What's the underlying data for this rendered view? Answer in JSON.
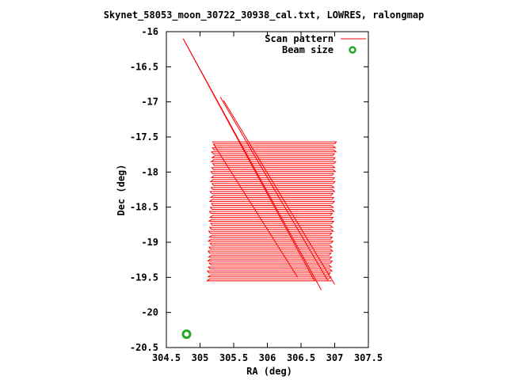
{
  "chart_data": {
    "type": "line",
    "title": "Skynet_58053_moon_30722_30938_cal.txt, LOWRES, ralongmap",
    "xlabel": "RA (deg)",
    "ylabel": "Dec (deg)",
    "xlim": [
      304.5,
      307.5
    ],
    "ylim": [
      -20.5,
      -16
    ],
    "xticks": [
      "304.5",
      "305",
      "305.5",
      "306",
      "306.5",
      "307",
      "307.5"
    ],
    "yticks": [
      "-16",
      "-16.5",
      "-17",
      "-17.5",
      "-18",
      "-18.5",
      "-19",
      "-19.5",
      "-20",
      "-20.5"
    ],
    "legend_position": "top-right",
    "series": [
      {
        "name": "Scan pattern",
        "color": "#ff0000",
        "style": "line",
        "raster": {
          "ra_start": 305.2,
          "ra_end": 307.0,
          "dec_top": -17.57,
          "dec_bottom": -19.55,
          "ra_skew": 0.07,
          "rows": 70
        },
        "slews": [
          [
            [
              304.75,
              -16.1
            ],
            [
              306.8,
              -19.68
            ]
          ],
          [
            [
              304.75,
              -16.1
            ],
            [
              306.7,
              -19.55
            ]
          ],
          [
            [
              305.3,
              -16.93
            ],
            [
              306.9,
              -19.55
            ]
          ],
          [
            [
              305.35,
              -16.98
            ],
            [
              307.0,
              -19.6
            ]
          ],
          [
            [
              305.2,
              -17.6
            ],
            [
              306.45,
              -19.5
            ]
          ]
        ]
      },
      {
        "name": "Beam size",
        "color": "#22aa22",
        "style": "marker",
        "points": [
          [
            304.8,
            -20.31
          ]
        ]
      }
    ]
  }
}
